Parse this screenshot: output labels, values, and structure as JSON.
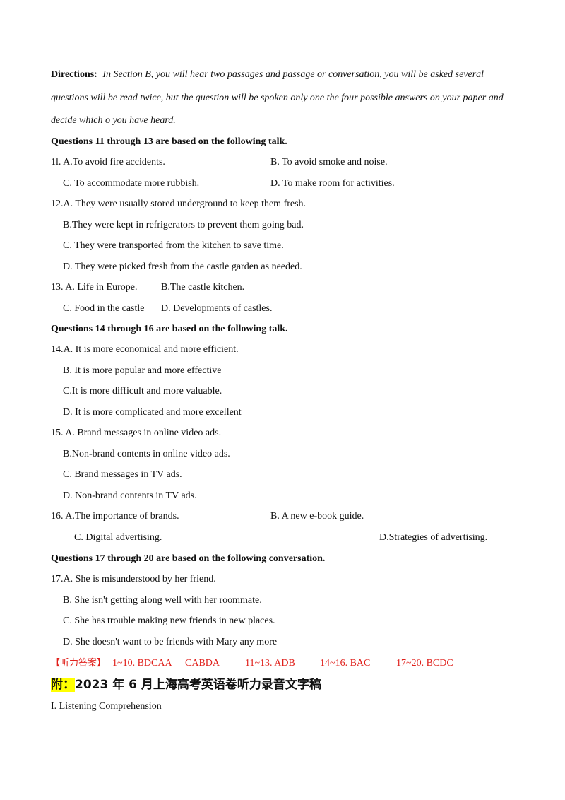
{
  "directions": {
    "label": "Directions:",
    "line1": "In Section B, you will hear two passages and passage or conversation, you will be asked several",
    "line2": "questions will be read twice, but the question will be spoken only one the four possible answers on your paper and",
    "line3": "decide which o you have heard."
  },
  "group1": {
    "heading": "Questions 11 through 13 are based on the following talk.",
    "q11": {
      "a": "1l. A.To avoid fire accidents.",
      "b": "B. To avoid smoke and noise.",
      "c": "C. To accommodate more rubbish.",
      "d": "D. To make room for activities."
    },
    "q12": {
      "a": "12.A. They were usually stored underground to keep them fresh.",
      "b": "B.They were kept in refrigerators to prevent them going bad.",
      "c": "C. They were transported from the kitchen to save time.",
      "d": "D. They were picked fresh from the castle garden as needed."
    },
    "q13": {
      "a": "13. A. Life in Europe.",
      "b": "B.The castle kitchen.",
      "c": "C. Food in the castle",
      "d": "D. Developments of castles."
    }
  },
  "group2": {
    "heading": "Questions 14 through 16 are based on the following talk.",
    "q14": {
      "a": "14.A. It is more economical and more efficient.",
      "b": "B. It is more popular and more effective",
      "c": "C.It is more difficult and more valuable.",
      "d": "D. It is more complicated and more excellent"
    },
    "q15": {
      "a": "15. A. Brand messages in online video ads.",
      "b": "B.Non-brand contents in online video ads.",
      "c": "C. Brand messages in TV ads.",
      "d": "D. Non-brand contents in TV ads."
    },
    "q16": {
      "a": "16. A.The importance of brands.",
      "b": "B. A new e-book guide.",
      "c": "C. Digital advertising.",
      "d": "D.Strategies of advertising."
    }
  },
  "group3": {
    "heading": "Questions 17 through 20 are based on the following conversation.",
    "q17": {
      "a": "17.A. She is misunderstood by her friend.",
      "b": "B. She isn't getting along well with her roommate.",
      "c": "C. She has trouble making new friends in new places.",
      "d": "D. She doesn't want to be friends with Mary any more"
    }
  },
  "answers": {
    "label": "【听力答案】",
    "a1": "1~10. BDCAA",
    "a2": "CABDA",
    "a3": "11~13. ADB",
    "a4": "14~16. BAC",
    "a5": "17~20. BCDC"
  },
  "appendix": {
    "prefix": "附：",
    "title": "2023 年 6 月上海高考英语卷听力录音文字稿"
  },
  "section": "I. Listening Comprehension"
}
